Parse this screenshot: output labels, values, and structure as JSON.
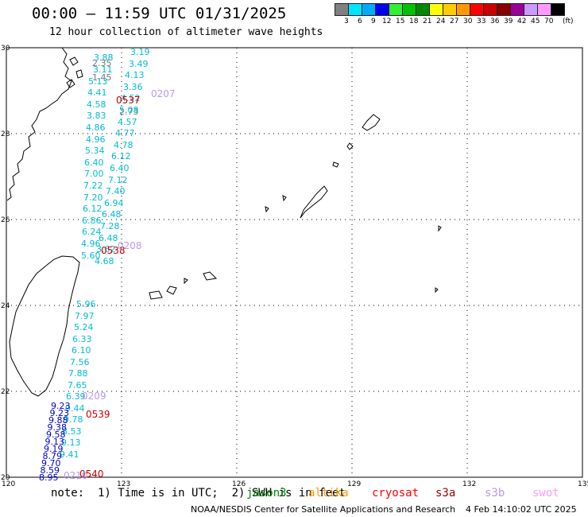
{
  "header": {
    "title": "00:00 – 11:59 UTC 01/31/2025",
    "subtitle": "12 hour collection of altimeter wave heights"
  },
  "legend": {
    "unit": "(ft)",
    "labels": [
      "3",
      "6",
      "9",
      "12",
      "15",
      "18",
      "21",
      "24",
      "27",
      "30",
      "33",
      "36",
      "39",
      "42",
      "45",
      "70"
    ],
    "colors": [
      "#808080",
      "#00e5ff",
      "#00aaff",
      "#0000ee",
      "#33ee33",
      "#00c000",
      "#008800",
      "#ffff00",
      "#ffcc00",
      "#ff9900",
      "#ff0000",
      "#cc0000",
      "#880000",
      "#990099",
      "#cc99ff",
      "#ff99ff",
      "#000000"
    ]
  },
  "axes": {
    "lon_labels": [
      "120",
      "123",
      "126",
      "129",
      "132",
      "135"
    ],
    "lat_labels": [
      "30",
      "28",
      "26",
      "24",
      "22",
      "20"
    ]
  },
  "track_labels": [
    {
      "text": "0537",
      "color": "#cc0000"
    },
    {
      "text": "0207",
      "color": "#bb99ee"
    },
    {
      "text": "0538",
      "color": "#cc0000"
    },
    {
      "text": "0208",
      "color": "#bb99ee"
    },
    {
      "text": "0209",
      "color": "#bb99ee"
    },
    {
      "text": "0539",
      "color": "#cc0000"
    },
    {
      "text": "0540",
      "color": "#cc0000"
    },
    {
      "text": "0210",
      "color": "#bb99ee"
    }
  ],
  "measurements": {
    "grey": [
      "2.35",
      "1.45",
      "2.73"
    ],
    "cyan": [
      "3.19",
      "3.88",
      "3.49",
      "3.11",
      "4.13",
      "5.13",
      "3.36",
      "4.41",
      "4.52",
      "4.58",
      "5.08",
      "3.83",
      "4.57",
      "4.86",
      "4.77",
      "4.96",
      "4.78",
      "5.34",
      "6.12",
      "6.40",
      "6.40",
      "7.00",
      "7.12",
      "7.22",
      "7.40",
      "7.20",
      "6.94",
      "6.12",
      "6.48",
      "6.86",
      "7.28",
      "6.24",
      "6.48",
      "4.96",
      "3.62",
      "5.60",
      "4.68",
      "5.96",
      "7.97",
      "5.24",
      "6.33",
      "6.10",
      "7.56",
      "7.88",
      "7.65",
      "6.39",
      "9.44",
      "9.78",
      "8.53",
      "9.13",
      "9.41"
    ],
    "blue": [
      "9.23",
      "9.23",
      "9.88",
      "9.38",
      "9.58",
      "9.13",
      "9.19",
      "8.79",
      "9.70",
      "8.59",
      "8.95"
    ]
  },
  "footer": {
    "note": "note:  1) Time is in UTC;  2) SWH is in feet",
    "missions": [
      {
        "name": "jason3",
        "color": "#008800"
      },
      {
        "name": "altika",
        "color": "#ff9900"
      },
      {
        "name": "cryosat",
        "color": "#ff0000"
      },
      {
        "name": "s3a",
        "color": "#990000"
      },
      {
        "name": "s3b",
        "color": "#bb99ee"
      },
      {
        "name": "swot",
        "color": "#ff99ff"
      }
    ],
    "credit": "NOAA/NESDIS Center for Satellite Applications and Research",
    "generated": "4 Feb 14:10:02 UTC 2025"
  }
}
